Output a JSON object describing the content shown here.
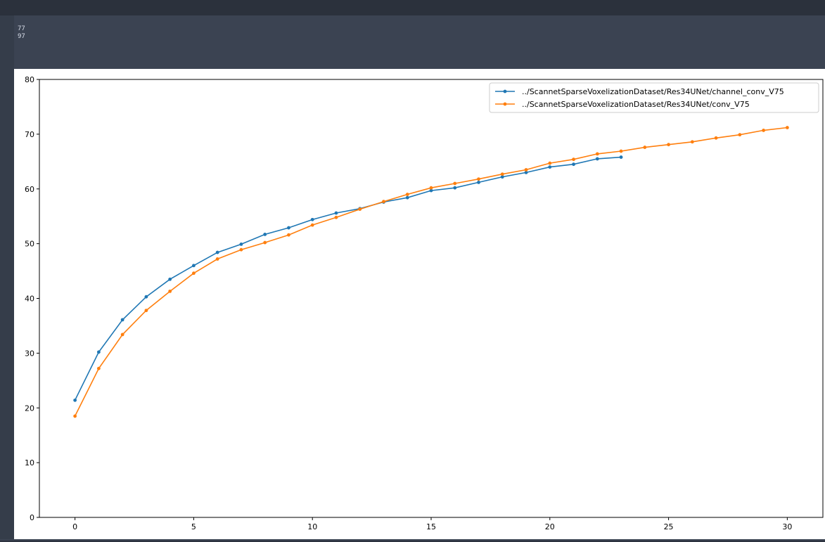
{
  "output": {
    "lines": [
      "77",
      "97"
    ]
  },
  "chart_data": {
    "type": "line",
    "title": "",
    "xlabel": "",
    "ylabel": "",
    "xlim": [
      -1.5,
      31.5
    ],
    "ylim": [
      0,
      80
    ],
    "xticks": [
      0,
      5,
      10,
      15,
      20,
      25,
      30
    ],
    "yticks": [
      0,
      10,
      20,
      30,
      40,
      50,
      60,
      70,
      80
    ],
    "grid": false,
    "legend": "top-right",
    "series": [
      {
        "name": "../ScannetSparseVoxelizationDataset/Res34UNet/channel_conv_V75",
        "color": "#1f77b4",
        "x": [
          0,
          1,
          2,
          3,
          4,
          5,
          6,
          7,
          8,
          9,
          10,
          11,
          12,
          13,
          14,
          15,
          16,
          17,
          18,
          19,
          20,
          21,
          22,
          23
        ],
        "y": [
          21.4,
          30.2,
          36.1,
          40.3,
          43.5,
          46.0,
          48.4,
          49.9,
          51.7,
          52.9,
          54.4,
          55.6,
          56.4,
          57.6,
          58.4,
          59.7,
          60.2,
          61.2,
          62.2,
          63.0,
          64.0,
          64.5,
          65.5,
          65.8
        ]
      },
      {
        "name": "../ScannetSparseVoxelizationDataset/Res34UNet/conv_V75",
        "color": "#ff7f0e",
        "x": [
          0,
          1,
          2,
          3,
          4,
          5,
          6,
          7,
          8,
          9,
          10,
          11,
          12,
          13,
          14,
          15,
          16,
          17,
          18,
          19,
          20,
          21,
          22,
          23,
          24,
          25,
          26,
          27,
          28,
          29,
          30
        ],
        "y": [
          18.5,
          27.2,
          33.4,
          37.8,
          41.3,
          44.6,
          47.2,
          48.9,
          50.2,
          51.6,
          53.4,
          54.8,
          56.3,
          57.7,
          59.0,
          60.2,
          61.0,
          61.8,
          62.7,
          63.5,
          64.7,
          65.4,
          66.4,
          66.9,
          67.6,
          68.1,
          68.6,
          69.3,
          69.9,
          70.7,
          71.2
        ]
      }
    ]
  }
}
